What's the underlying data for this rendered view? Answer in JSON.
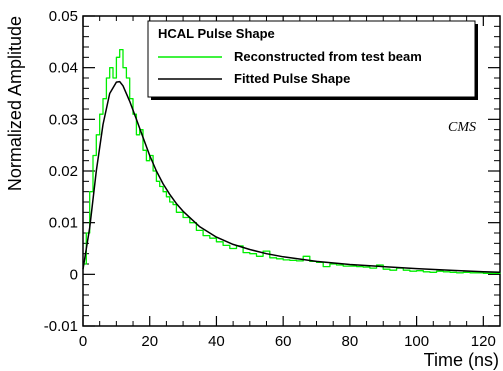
{
  "chart_data": {
    "type": "line",
    "title": "",
    "xlabel": "Time (ns)",
    "ylabel": "Normalized Amplitude",
    "xlim": [
      0,
      125
    ],
    "ylim": [
      -0.01,
      0.05
    ],
    "x_ticks": [
      0,
      20,
      40,
      60,
      80,
      100,
      120
    ],
    "x_tick_labels": [
      "0",
      "20",
      "40",
      "60",
      "80",
      "100",
      "120"
    ],
    "y_ticks": [
      -0.01,
      0,
      0.01,
      0.02,
      0.03,
      0.04,
      0.05
    ],
    "y_tick_labels": [
      "-0.01",
      "0",
      "0.01",
      "0.02",
      "0.03",
      "0.04",
      "0.05"
    ],
    "grid": false,
    "legend": {
      "placement": "top-right",
      "title": "HCAL Pulse Shape"
    },
    "annotation": "CMS",
    "series": [
      {
        "name": "Reconstructed from test beam",
        "color": "#00ee00",
        "style": "step",
        "x": [
          0,
          1,
          2,
          3,
          4,
          5,
          6,
          7,
          8,
          9,
          10,
          11,
          12,
          13,
          14,
          15,
          16,
          17,
          18,
          19,
          20,
          21,
          22,
          23,
          24,
          25,
          26,
          27,
          28,
          29,
          30,
          32,
          34,
          36,
          38,
          40,
          42,
          44,
          46,
          48,
          50,
          52,
          54,
          56,
          58,
          60,
          62,
          64,
          66,
          68,
          70,
          72,
          74,
          76,
          78,
          80,
          82,
          84,
          86,
          88,
          90,
          92,
          94,
          96,
          98,
          100,
          102,
          104,
          106,
          108,
          110,
          112,
          114,
          116,
          118,
          120,
          122,
          125
        ],
        "y": [
          0.002,
          0.008,
          0.016,
          0.023,
          0.027,
          0.031,
          0.034,
          0.038,
          0.04,
          0.038,
          0.042,
          0.0435,
          0.04,
          0.038,
          0.034,
          0.031,
          0.027,
          0.028,
          0.024,
          0.022,
          0.023,
          0.02,
          0.018,
          0.017,
          0.016,
          0.015,
          0.014,
          0.0135,
          0.012,
          0.012,
          0.011,
          0.01,
          0.0085,
          0.0075,
          0.007,
          0.0063,
          0.0056,
          0.005,
          0.0055,
          0.0042,
          0.004,
          0.0035,
          0.0045,
          0.0032,
          0.003,
          0.0028,
          0.0027,
          0.0026,
          0.0035,
          0.0025,
          0.0023,
          0.0015,
          0.002,
          0.0018,
          0.0016,
          0.0016,
          0.0015,
          0.0014,
          0.0012,
          0.0018,
          0.001,
          0.0008,
          0.0012,
          0.0008,
          0.0006,
          0.0007,
          0.0005,
          0.0004,
          0.0006,
          0.0005,
          0.0004,
          0.0003,
          0.0004,
          0.0003,
          0.0003,
          0.0002,
          0.0002,
          0.0001
        ]
      },
      {
        "name": "Fitted Pulse Shape",
        "color": "#000000",
        "style": "smooth",
        "x": [
          0,
          2,
          4,
          6,
          8,
          10,
          11,
          12,
          14,
          16,
          18,
          20,
          22,
          24,
          26,
          28,
          30,
          35,
          40,
          45,
          50,
          55,
          60,
          70,
          80,
          90,
          100,
          110,
          120,
          125
        ],
        "y": [
          0.001,
          0.009,
          0.02,
          0.029,
          0.035,
          0.0372,
          0.0373,
          0.0365,
          0.0335,
          0.03,
          0.0265,
          0.023,
          0.02,
          0.0175,
          0.0155,
          0.0137,
          0.0122,
          0.0092,
          0.0072,
          0.0058,
          0.0048,
          0.004,
          0.0034,
          0.0025,
          0.0019,
          0.0015,
          0.0011,
          0.0008,
          0.0005,
          0.0004
        ]
      }
    ]
  }
}
